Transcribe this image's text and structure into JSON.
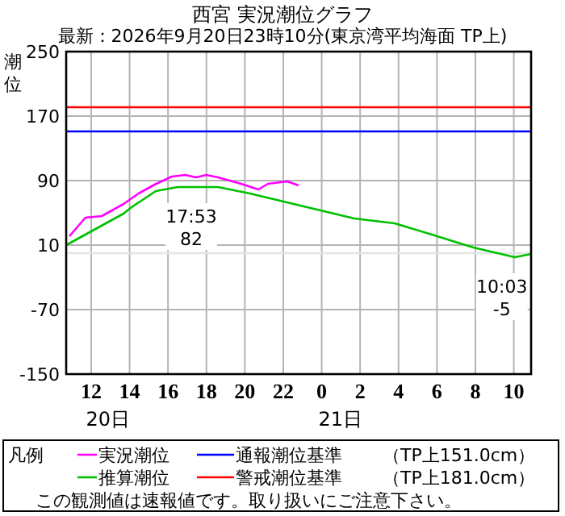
{
  "chart_data": {
    "type": "line",
    "title": "西宮 実況潮位グラフ",
    "subtitle": "最新：2026年9月20日23時10分(東京湾平均海面 TP上)",
    "ylabel": "潮位",
    "legend_title": "凡例",
    "xlim": [
      "2026-09-20T10:42",
      "2026-09-21T10:54"
    ],
    "xticks": [
      {
        "value": "2026-09-20T12:00",
        "label": "12"
      },
      {
        "value": "2026-09-20T14:00",
        "label": "14"
      },
      {
        "value": "2026-09-20T16:00",
        "label": "16"
      },
      {
        "value": "2026-09-20T18:00",
        "label": "18"
      },
      {
        "value": "2026-09-20T20:00",
        "label": "20"
      },
      {
        "value": "2026-09-20T22:00",
        "label": "22"
      },
      {
        "value": "2026-09-21T00:00",
        "label": "0"
      },
      {
        "value": "2026-09-21T02:00",
        "label": "2"
      },
      {
        "value": "2026-09-21T04:00",
        "label": "4"
      },
      {
        "value": "2026-09-21T06:00",
        "label": "6"
      },
      {
        "value": "2026-09-21T08:00",
        "label": "8"
      },
      {
        "value": "2026-09-21T10:00",
        "label": "10"
      }
    ],
    "ylim": [
      -150,
      250
    ],
    "yticks": [
      -150,
      -70,
      10,
      90,
      170,
      250
    ],
    "grid": true,
    "legend": "bottom",
    "marker": "none",
    "line_style": "solid",
    "series": [
      {
        "name": "実況潮位",
        "color": "#ff00ff",
        "x": [
          "2026-09-20T10:52",
          "2026-09-20T11:42",
          "2026-09-20T12:33",
          "2026-09-20T13:41",
          "2026-09-20T14:28",
          "2026-09-20T15:18",
          "2026-09-20T16:12",
          "2026-09-20T16:54",
          "2026-09-20T17:28",
          "2026-09-20T18:00",
          "2026-09-20T18:36",
          "2026-09-20T19:48",
          "2026-09-20T20:42",
          "2026-09-20T21:12",
          "2026-09-20T22:12",
          "2026-09-20T22:48"
        ],
        "values": [
          21,
          44,
          46,
          61,
          74,
          85,
          95,
          97,
          94,
          97,
          94,
          86,
          79,
          86,
          89,
          84
        ]
      },
      {
        "name": "推算潮位",
        "color": "#00c000",
        "x": [
          "2026-09-20T10:42",
          "2026-09-20T13:41",
          "2026-09-20T14:06",
          "2026-09-20T15:22",
          "2026-09-20T16:30",
          "2026-09-20T17:53",
          "2026-09-20T18:36",
          "2026-09-20T20:16",
          "2026-09-20T23:46",
          "2026-09-21T01:42",
          "2026-09-21T03:48",
          "2026-09-21T05:36",
          "2026-09-21T07:54",
          "2026-09-21T10:03",
          "2026-09-21T10:54"
        ],
        "values": [
          10,
          49,
          57,
          77,
          82,
          82,
          82,
          74,
          54,
          43,
          37,
          24,
          7,
          -5,
          -1
        ]
      }
    ],
    "ref_lines": [
      {
        "axis": "y",
        "value": 151,
        "label": "通報潮位基準",
        "color": "#0000ff"
      },
      {
        "axis": "y",
        "value": 181,
        "label": "警戒潮位基準",
        "color": "#ff0000"
      },
      {
        "axis": "y",
        "value": 0,
        "color": "#e4e4e4"
      }
    ],
    "annotations": [
      {
        "text": "17:53\n82",
        "x": "2026-09-20T17:53",
        "y": 82
      },
      {
        "text": "10:03\n-5",
        "x": "2026-09-21T10:03",
        "y": -5
      },
      "20日",
      "21日",
      "（TP上151.0cm）",
      "（TP上181.0cm）",
      "この観測値は速報値です。取り扱いにご注意下さい。"
    ]
  }
}
